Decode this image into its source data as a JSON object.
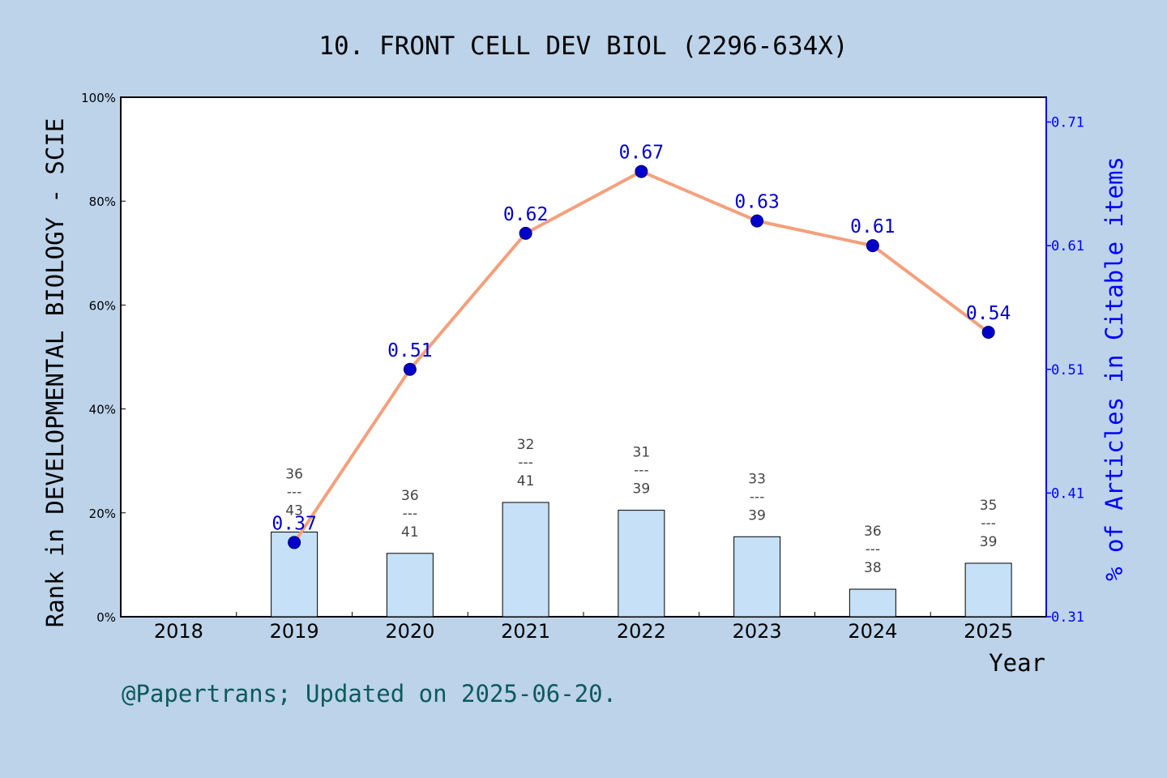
{
  "chart_data": {
    "type": "bar+line",
    "title": "10. FRONT CELL DEV BIOL (2296-634X)",
    "xlabel": "Year",
    "ylabel_left": "Rank in DEVELOPMENTAL BIOLOGY - SCIE",
    "ylabel_right": "% of Articles in Citable items",
    "categories": [
      "2018",
      "2019",
      "2020",
      "2021",
      "2022",
      "2023",
      "2024",
      "2025"
    ],
    "left_axis": {
      "ylim": [
        0,
        100
      ],
      "ticks": [
        "0%",
        "20%",
        "40%",
        "60%",
        "80%",
        "100%"
      ]
    },
    "right_axis": {
      "ylim": [
        0.31,
        0.73
      ],
      "ticks": [
        "0.31",
        "0.41",
        "0.51",
        "0.61",
        "0.71"
      ]
    },
    "bars": {
      "description": "rank percentile",
      "values": [
        null,
        16.3,
        12.2,
        22.0,
        20.5,
        15.4,
        5.3,
        10.3
      ],
      "labels": [
        null,
        {
          "rank": "36",
          "sep": "---",
          "total": "43"
        },
        {
          "rank": "36",
          "sep": "---",
          "total": "41"
        },
        {
          "rank": "32",
          "sep": "---",
          "total": "41"
        },
        {
          "rank": "31",
          "sep": "---",
          "total": "39"
        },
        {
          "rank": "33",
          "sep": "---",
          "total": "39"
        },
        {
          "rank": "36",
          "sep": "---",
          "total": "38"
        },
        {
          "rank": "35",
          "sep": "---",
          "total": "39"
        }
      ]
    },
    "line": {
      "values": [
        null,
        0.37,
        0.51,
        0.62,
        0.67,
        0.63,
        0.61,
        0.54
      ],
      "labels": [
        null,
        "0.37",
        "0.51",
        "0.62",
        "0.67",
        "0.63",
        "0.61",
        "0.54"
      ]
    },
    "grid": false,
    "colors": {
      "background": "#bcd3ea",
      "plot_bg": "#ffffff",
      "bar_fill": "#c5e0f7",
      "line": "#f4a07c",
      "marker": "#0000cc",
      "right_axis": "#0000ff",
      "footer": "#0d5a5a"
    }
  },
  "footer": "@Papertrans; Updated on 2025-06-20."
}
